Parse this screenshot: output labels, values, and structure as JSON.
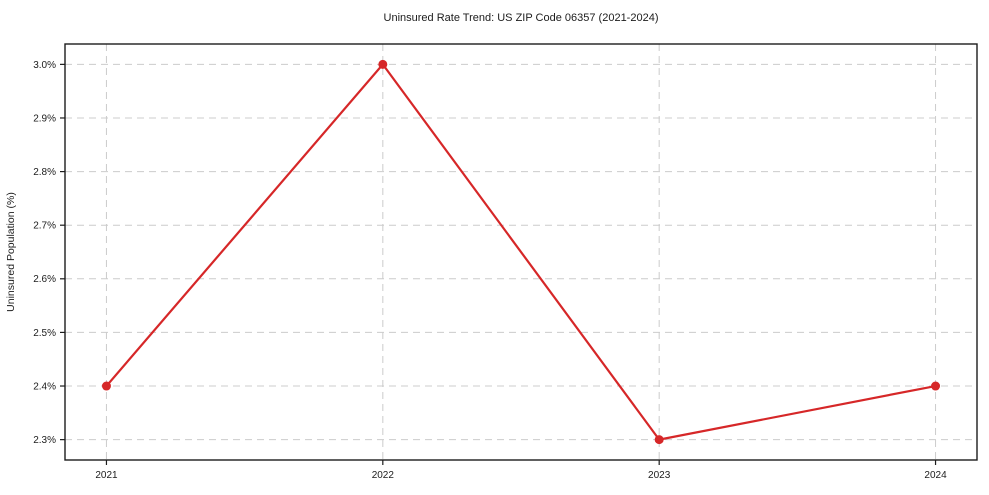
{
  "chart_data": {
    "type": "line",
    "title": "Uninsured Rate Trend: US ZIP Code 06357 (2021-2024)",
    "xlabel": "",
    "ylabel": "Uninsured Population (%)",
    "x": [
      2021,
      2022,
      2023,
      2024
    ],
    "values": [
      2.4,
      3.0,
      2.3,
      2.4
    ],
    "x_tick_labels": [
      "2021",
      "2022",
      "2023",
      "2024"
    ],
    "y_ticks": [
      2.3,
      2.4,
      2.5,
      2.6,
      2.7,
      2.8,
      2.9,
      3.0
    ],
    "y_tick_labels": [
      "2.3%",
      "2.4%",
      "2.5%",
      "2.6%",
      "2.7%",
      "2.8%",
      "2.9%",
      "3.0%"
    ],
    "xlim": [
      2020.85,
      2024.15
    ],
    "ylim": [
      2.262,
      3.038
    ],
    "grid": true,
    "legend_position": "none",
    "line_color": "#d62728",
    "marker": "circle",
    "grid_color": "#cccccc",
    "spine_color": "#1c1c1c"
  }
}
